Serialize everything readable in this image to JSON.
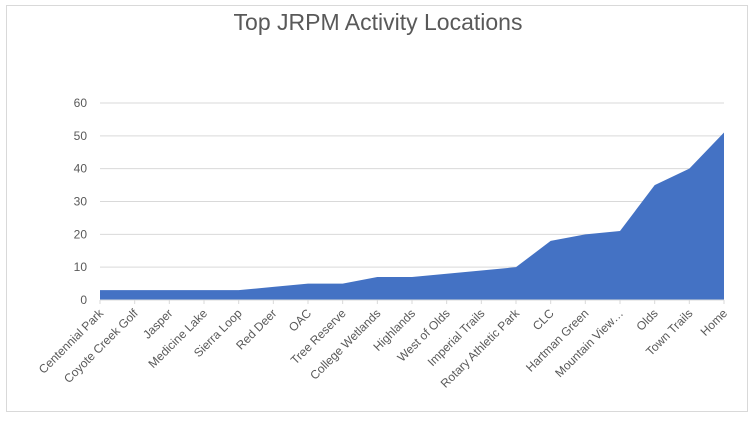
{
  "chart_data": {
    "type": "area",
    "title": "Top JRPM Activity Locations",
    "xlabel": "",
    "ylabel": "",
    "ylim": [
      0,
      60
    ],
    "yticks": [
      0,
      10,
      20,
      30,
      40,
      50,
      60
    ],
    "grid": true,
    "legend": "none",
    "color": "#4472c4",
    "categories": [
      "Centennial Park",
      "Coyote Creek Golf",
      "Jasper",
      "Medicine Lake",
      "Sierra Loop",
      "Red Deer",
      "OAC",
      "Tree Reserve",
      "College Wetlands",
      "Highlands",
      "West of Olds",
      "Imperial Trails",
      "Rotary Athletic Park",
      "CLC",
      "Hartman Green",
      "Mountain View…",
      "Olds",
      "Town Trails",
      "Home"
    ],
    "values": [
      3,
      3,
      3,
      3,
      3,
      4,
      5,
      5,
      7,
      7,
      8,
      9,
      10,
      18,
      20,
      21,
      35,
      40,
      51
    ]
  }
}
